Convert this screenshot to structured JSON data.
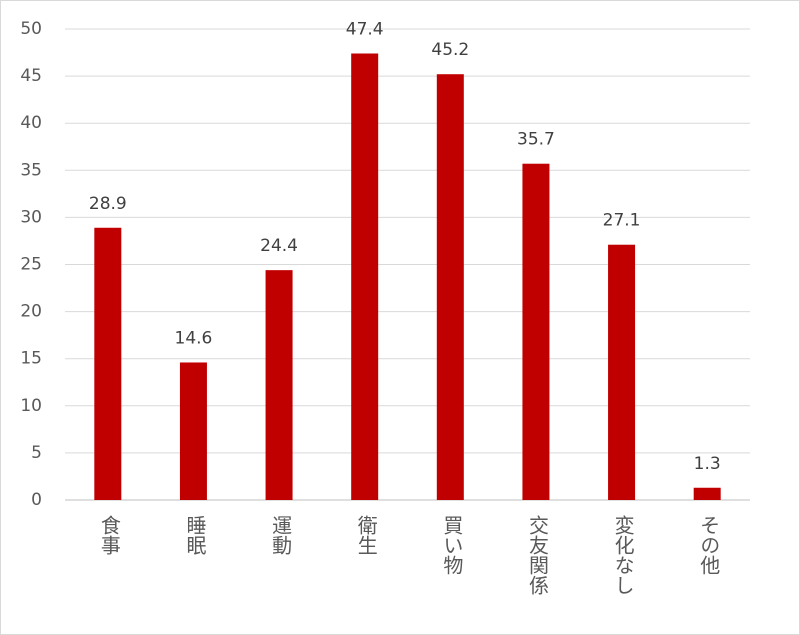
{
  "chart_data": {
    "type": "bar",
    "categories": [
      "食事",
      "睡眠",
      "運動",
      "衛生",
      "買い物",
      "交友関係",
      "変化なし",
      "その他"
    ],
    "values": [
      28.9,
      14.6,
      24.4,
      47.4,
      45.2,
      35.7,
      27.1,
      1.3
    ],
    "color": "#c00000",
    "ylim": [
      0,
      50
    ],
    "yticks": [
      0,
      5,
      10,
      15,
      20,
      25,
      30,
      35,
      40,
      45,
      50
    ],
    "grid": true
  }
}
